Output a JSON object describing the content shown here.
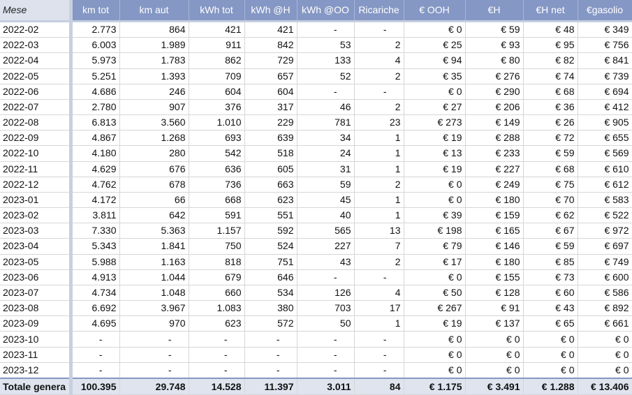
{
  "sheet": {
    "headers": [
      "Mese",
      "km tot",
      "km aut",
      "kWh tot",
      "kWh @H",
      "kWh @OO",
      "Ricariche",
      "€ OOH",
      "€H",
      "€H net",
      "€gasolio"
    ],
    "rows": [
      [
        "2022-02",
        "2.773",
        "864",
        "421",
        "421",
        "-",
        "-",
        "€ 0",
        "€ 59",
        "€ 48",
        "€ 349"
      ],
      [
        "2022-03",
        "6.003",
        "1.989",
        "911",
        "842",
        "53",
        "2",
        "€ 25",
        "€ 93",
        "€ 95",
        "€ 756"
      ],
      [
        "2022-04",
        "5.973",
        "1.783",
        "862",
        "729",
        "133",
        "4",
        "€ 94",
        "€ 80",
        "€ 82",
        "€ 841"
      ],
      [
        "2022-05",
        "5.251",
        "1.393",
        "709",
        "657",
        "52",
        "2",
        "€ 35",
        "€ 276",
        "€ 74",
        "€ 739"
      ],
      [
        "2022-06",
        "4.686",
        "246",
        "604",
        "604",
        "-",
        "-",
        "€ 0",
        "€ 290",
        "€ 68",
        "€ 694"
      ],
      [
        "2022-07",
        "2.780",
        "907",
        "376",
        "317",
        "46",
        "2",
        "€ 27",
        "€ 206",
        "€ 36",
        "€ 412"
      ],
      [
        "2022-08",
        "6.813",
        "3.560",
        "1.010",
        "229",
        "781",
        "23",
        "€ 273",
        "€ 149",
        "€ 26",
        "€ 905"
      ],
      [
        "2022-09",
        "4.867",
        "1.268",
        "693",
        "639",
        "34",
        "1",
        "€ 19",
        "€ 288",
        "€ 72",
        "€ 655"
      ],
      [
        "2022-10",
        "4.180",
        "280",
        "542",
        "518",
        "24",
        "1",
        "€ 13",
        "€ 233",
        "€ 59",
        "€ 569"
      ],
      [
        "2022-11",
        "4.629",
        "676",
        "636",
        "605",
        "31",
        "1",
        "€ 19",
        "€ 227",
        "€ 68",
        "€ 610"
      ],
      [
        "2022-12",
        "4.762",
        "678",
        "736",
        "663",
        "59",
        "2",
        "€ 0",
        "€ 249",
        "€ 75",
        "€ 612"
      ],
      [
        "2023-01",
        "4.172",
        "66",
        "668",
        "623",
        "45",
        "1",
        "€ 0",
        "€ 180",
        "€ 70",
        "€ 583"
      ],
      [
        "2023-02",
        "3.811",
        "642",
        "591",
        "551",
        "40",
        "1",
        "€ 39",
        "€ 159",
        "€ 62",
        "€ 522"
      ],
      [
        "2023-03",
        "7.330",
        "5.363",
        "1.157",
        "592",
        "565",
        "13",
        "€ 198",
        "€ 165",
        "€ 67",
        "€ 972"
      ],
      [
        "2023-04",
        "5.343",
        "1.841",
        "750",
        "524",
        "227",
        "7",
        "€ 79",
        "€ 146",
        "€ 59",
        "€ 697"
      ],
      [
        "2023-05",
        "5.988",
        "1.163",
        "818",
        "751",
        "43",
        "2",
        "€ 17",
        "€ 180",
        "€ 85",
        "€ 749"
      ],
      [
        "2023-06",
        "4.913",
        "1.044",
        "679",
        "646",
        "-",
        "-",
        "€ 0",
        "€ 155",
        "€ 73",
        "€ 600"
      ],
      [
        "2023-07",
        "4.734",
        "1.048",
        "660",
        "534",
        "126",
        "4",
        "€ 50",
        "€ 128",
        "€ 60",
        "€ 586"
      ],
      [
        "2023-08",
        "6.692",
        "3.967",
        "1.083",
        "380",
        "703",
        "17",
        "€ 267",
        "€ 91",
        "€ 43",
        "€ 892"
      ],
      [
        "2023-09",
        "4.695",
        "970",
        "623",
        "572",
        "50",
        "1",
        "€ 19",
        "€ 137",
        "€ 65",
        "€ 661"
      ],
      [
        "2023-10",
        "-",
        "-",
        "-",
        "-",
        "-",
        "-",
        "€ 0",
        "€ 0",
        "€ 0",
        "€ 0"
      ],
      [
        "2023-11",
        "-",
        "-",
        "-",
        "-",
        "-",
        "-",
        "€ 0",
        "€ 0",
        "€ 0",
        "€ 0"
      ],
      [
        "2023-12",
        "-",
        "-",
        "-",
        "-",
        "-",
        "-",
        "€ 0",
        "€ 0",
        "€ 0",
        "€ 0"
      ]
    ],
    "total": [
      "Totale genera",
      "100.395",
      "29.748",
      "14.528",
      "11.397",
      "3.011",
      "84",
      "€ 1.175",
      "€ 3.491",
      "€ 1.288",
      "€ 13.406"
    ]
  },
  "colors": {
    "header_bg": "#8597c4",
    "first_col_header_bg": "#dde2ed",
    "total_bg": "#dfe4ef"
  }
}
